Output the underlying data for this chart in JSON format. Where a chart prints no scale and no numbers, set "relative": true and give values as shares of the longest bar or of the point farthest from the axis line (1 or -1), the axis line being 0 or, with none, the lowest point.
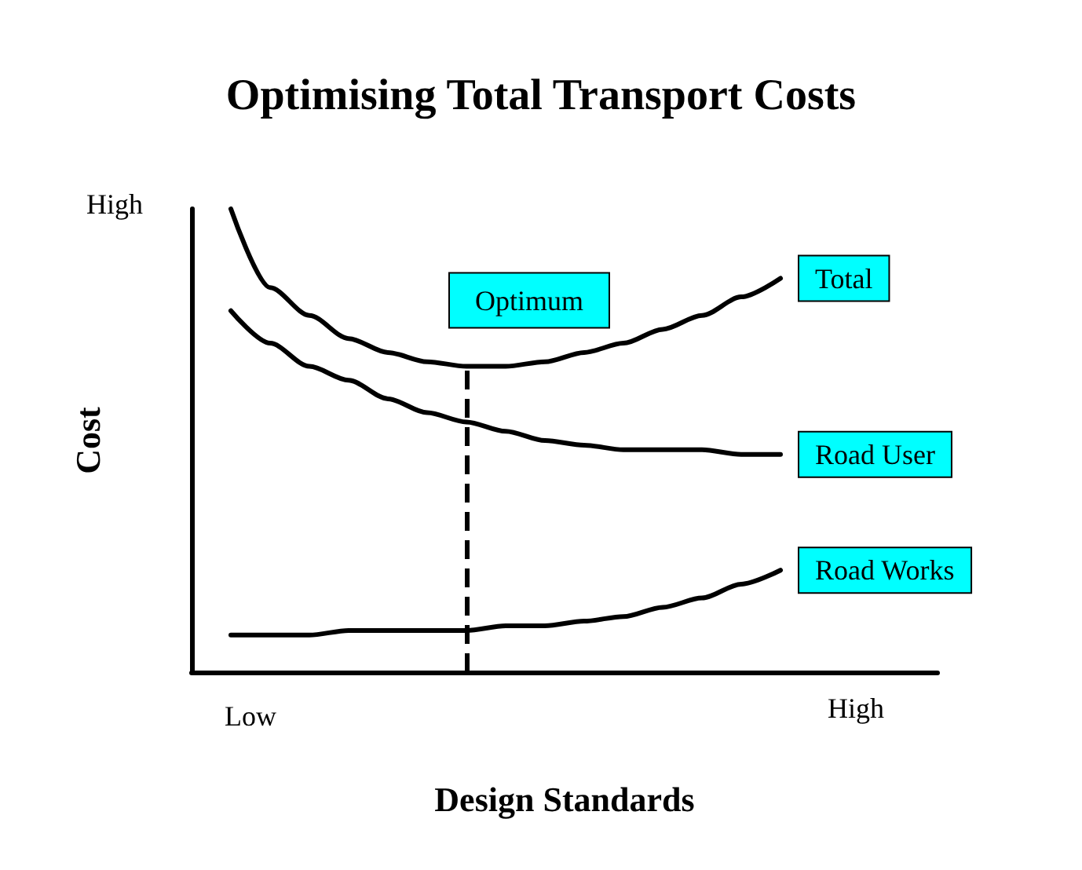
{
  "chart_data": {
    "type": "line",
    "title": "Optimising Total Transport Costs",
    "xlabel": "Design Standards",
    "ylabel": "Cost",
    "relative": true,
    "legend": false,
    "grid": false,
    "marker": "none",
    "line_style": "solid",
    "categories": [
      null,
      null,
      null,
      null,
      null,
      null,
      null,
      null,
      null,
      null,
      null,
      null,
      null,
      null,
      null,
      null,
      null,
      null,
      null,
      null
    ],
    "series": [
      {
        "name": "Total",
        "color": "#000000",
        "values": [
          null,
          1.0,
          0.83,
          0.77,
          0.72,
          0.69,
          0.67,
          0.66,
          0.66,
          0.67,
          0.69,
          0.71,
          0.74,
          0.77,
          0.81,
          0.85,
          null,
          null,
          null,
          null
        ]
      },
      {
        "name": "Road User",
        "color": "#000000",
        "values": [
          null,
          0.78,
          0.71,
          0.66,
          0.63,
          0.59,
          0.56,
          0.54,
          0.52,
          0.5,
          0.49,
          0.48,
          0.48,
          0.48,
          0.47,
          0.47,
          null,
          null,
          null,
          null
        ]
      },
      {
        "name": "Road Works",
        "color": "#000000",
        "values": [
          null,
          0.08,
          0.08,
          0.08,
          0.09,
          0.09,
          0.09,
          0.09,
          0.1,
          0.1,
          0.11,
          0.12,
          0.14,
          0.16,
          0.19,
          0.22,
          null,
          null,
          null,
          null
        ]
      }
    ],
    "annotations": [
      "High",
      "Low",
      "High",
      "Optimum"
    ]
  }
}
